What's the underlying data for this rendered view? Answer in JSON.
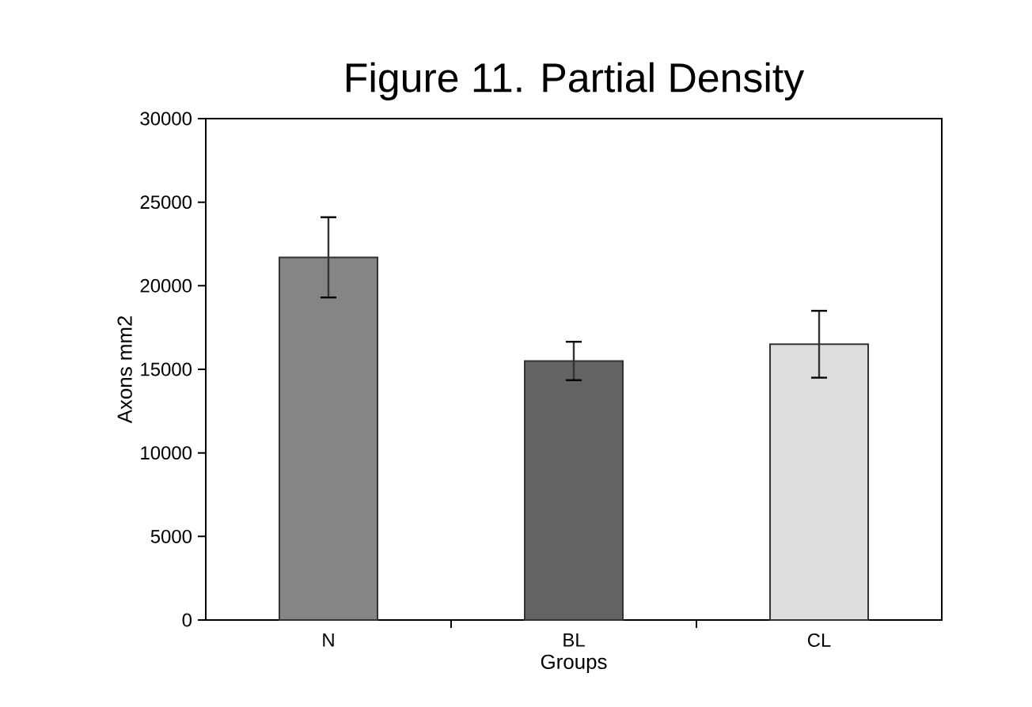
{
  "chart_data": {
    "type": "bar",
    "title": "Figure 11. Partial Density",
    "xlabel": "Groups",
    "ylabel": "Axons mm2",
    "categories": [
      "N",
      "BL",
      "CL"
    ],
    "values": [
      21700,
      15500,
      16500
    ],
    "errors": [
      2400,
      1150,
      2000
    ],
    "colors": [
      "#858585",
      "#636363",
      "#dedede"
    ],
    "ylim": [
      0,
      30000
    ],
    "yticks": [
      0,
      5000,
      10000,
      15000,
      20000,
      25000,
      30000
    ],
    "grid": false
  }
}
